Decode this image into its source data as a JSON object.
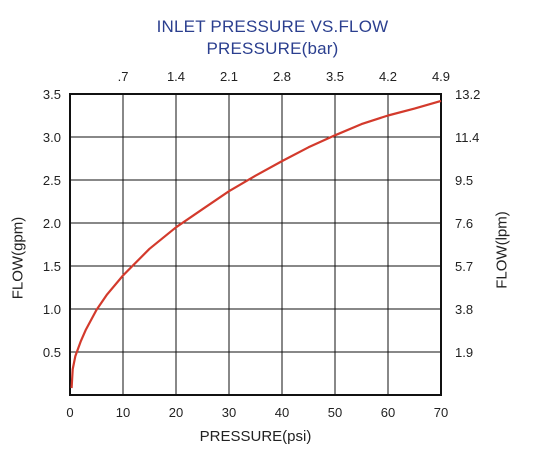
{
  "chart_data": {
    "type": "line",
    "title": "INLET PRESSURE VS.FLOW",
    "subtitle": "PRESSURE(bar)",
    "xlabel": "PRESSURE(psi)",
    "ylabel": "FLOW(gpm)",
    "ylabel_right": "FLOW(lpm)",
    "xlim": [
      0,
      70
    ],
    "ylim": [
      0,
      3.5
    ],
    "grid": true,
    "x_ticks": [
      "0",
      "10",
      "20",
      "30",
      "40",
      "50",
      "60",
      "70"
    ],
    "y_ticks": [
      "0.5",
      "1.0",
      "1.5",
      "2.0",
      "2.5",
      "3.0",
      "3.5"
    ],
    "top_ticks": [
      ".7",
      "1.4",
      "2.1",
      "2.8",
      "3.5",
      "4.2",
      "4.9"
    ],
    "right_ticks": [
      "1.9",
      "3.8",
      "5.7",
      "7.6",
      "9.5",
      "11.4",
      "13.2"
    ],
    "line_color": "#d33a2c",
    "series": [
      {
        "x": [
          0.3,
          0.5,
          1,
          2,
          3,
          5,
          7,
          10,
          15,
          20,
          25,
          30,
          35,
          40,
          45,
          50,
          55,
          60,
          65,
          70
        ],
        "values": [
          0.08,
          0.3,
          0.45,
          0.62,
          0.76,
          0.99,
          1.17,
          1.39,
          1.7,
          1.95,
          2.16,
          2.37,
          2.55,
          2.72,
          2.88,
          3.02,
          3.15,
          3.25,
          3.33,
          3.42
        ]
      }
    ]
  }
}
